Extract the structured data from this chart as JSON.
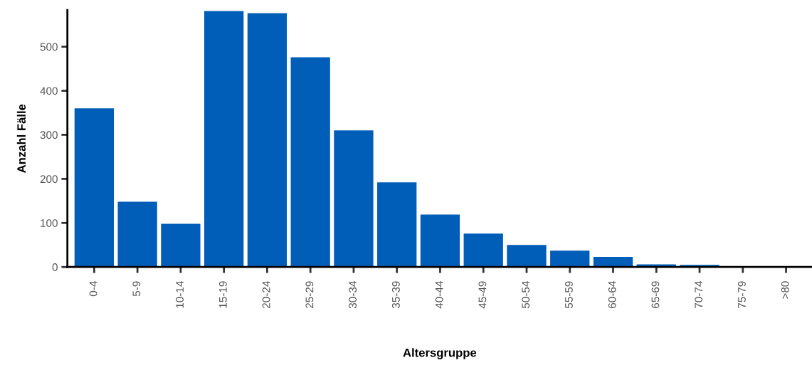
{
  "chart_data": {
    "type": "bar",
    "xlabel": "Altersgruppe",
    "ylabel": "Anzahl Fälle",
    "categories": [
      "0-4",
      "5-9",
      "10-14",
      "15-19",
      "20-24",
      "25-29",
      "30-34",
      "35-39",
      "40-44",
      "45-49",
      "50-54",
      "55-59",
      "60-64",
      "65-69",
      "70-74",
      "75-79",
      ">80"
    ],
    "values": [
      360,
      148,
      98,
      581,
      576,
      476,
      310,
      192,
      119,
      76,
      50,
      37,
      23,
      6,
      5,
      2,
      2
    ],
    "color": "#005eb8",
    "ylim": [
      0,
      583
    ],
    "yticks": [
      0,
      100,
      200,
      300,
      400,
      500
    ],
    "grid": false
  }
}
